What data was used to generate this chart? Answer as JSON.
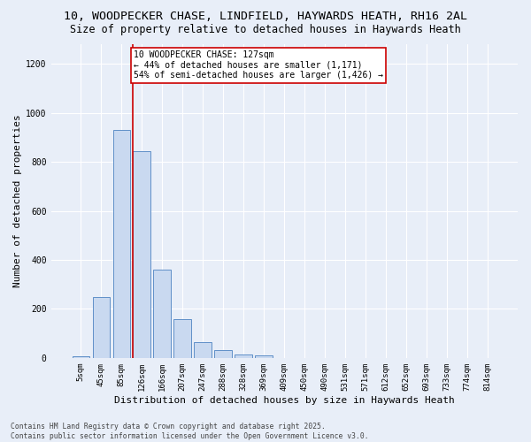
{
  "title1": "10, WOODPECKER CHASE, LINDFIELD, HAYWARDS HEATH, RH16 2AL",
  "title2": "Size of property relative to detached houses in Haywards Heath",
  "xlabel": "Distribution of detached houses by size in Haywards Heath",
  "ylabel": "Number of detached properties",
  "bar_labels": [
    "5sqm",
    "45sqm",
    "85sqm",
    "126sqm",
    "166sqm",
    "207sqm",
    "247sqm",
    "288sqm",
    "328sqm",
    "369sqm",
    "409sqm",
    "450sqm",
    "490sqm",
    "531sqm",
    "571sqm",
    "612sqm",
    "652sqm",
    "693sqm",
    "733sqm",
    "774sqm",
    "814sqm"
  ],
  "bar_values": [
    5,
    248,
    930,
    845,
    360,
    157,
    65,
    33,
    15,
    10,
    1,
    0,
    0,
    1,
    0,
    0,
    0,
    0,
    0,
    1,
    0
  ],
  "bar_color": "#c9d9f0",
  "bar_edge_color": "#6090c8",
  "bg_color": "#e8eef8",
  "grid_color": "#ffffff",
  "red_line_index": 2.55,
  "annotation_text": "10 WOODPECKER CHASE: 127sqm\n← 44% of detached houses are smaller (1,171)\n54% of semi-detached houses are larger (1,426) →",
  "annotation_box_color": "#ffffff",
  "annotation_border_color": "#cc0000",
  "ylim": [
    0,
    1280
  ],
  "yticks": [
    0,
    200,
    400,
    600,
    800,
    1000,
    1200
  ],
  "footer": "Contains HM Land Registry data © Crown copyright and database right 2025.\nContains public sector information licensed under the Open Government Licence v3.0.",
  "title_fontsize": 9.5,
  "subtitle_fontsize": 8.5,
  "axis_label_fontsize": 8,
  "tick_fontsize": 6.5,
  "annotation_fontsize": 7
}
